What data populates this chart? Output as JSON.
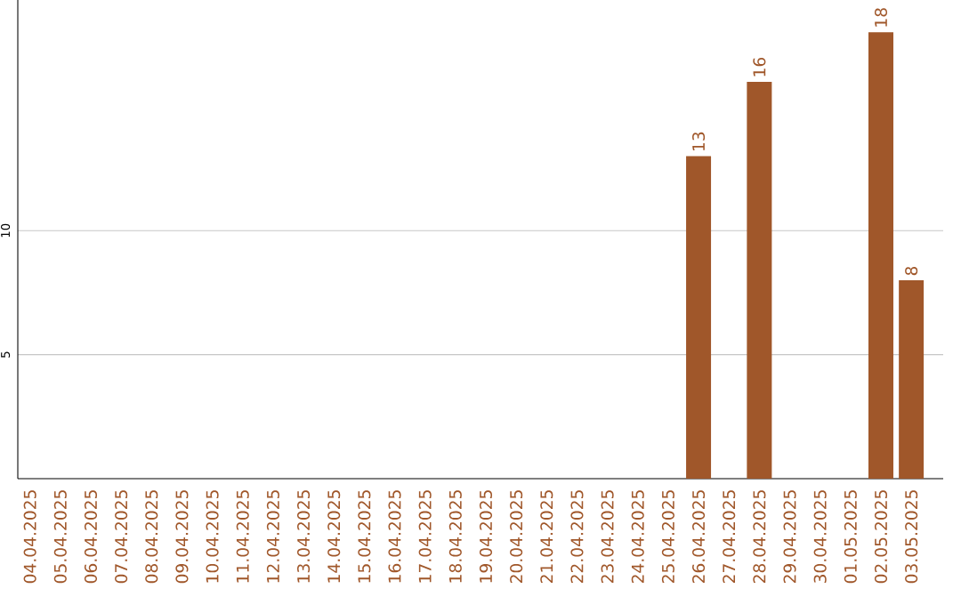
{
  "chart_data": {
    "type": "bar",
    "categories": [
      "04.04.2025",
      "05.04.2025",
      "06.04.2025",
      "07.04.2025",
      "08.04.2025",
      "09.04.2025",
      "10.04.2025",
      "11.04.2025",
      "12.04.2025",
      "13.04.2025",
      "14.04.2025",
      "15.04.2025",
      "16.04.2025",
      "17.04.2025",
      "18.04.2025",
      "19.04.2025",
      "20.04.2025",
      "21.04.2025",
      "22.04.2025",
      "23.04.2025",
      "24.04.2025",
      "25.04.2025",
      "26.04.2025",
      "27.04.2025",
      "28.04.2025",
      "29.04.2025",
      "30.04.2025",
      "01.05.2025",
      "02.05.2025",
      "03.05.2025"
    ],
    "values": [
      0,
      0,
      0,
      0,
      0,
      0,
      0,
      0,
      0,
      0,
      0,
      0,
      0,
      0,
      0,
      0,
      0,
      0,
      0,
      0,
      0,
      0,
      13,
      0,
      16,
      0,
      0,
      0,
      18,
      8
    ],
    "value_labels": [
      null,
      null,
      null,
      null,
      null,
      null,
      null,
      null,
      null,
      null,
      null,
      null,
      null,
      null,
      null,
      null,
      null,
      null,
      null,
      null,
      null,
      null,
      "13",
      null,
      "16",
      null,
      null,
      null,
      "18",
      "8"
    ],
    "color": "#a0572a",
    "ylim": [
      0,
      19.3
    ],
    "yticks": [
      5,
      10
    ],
    "grid": "y"
  }
}
